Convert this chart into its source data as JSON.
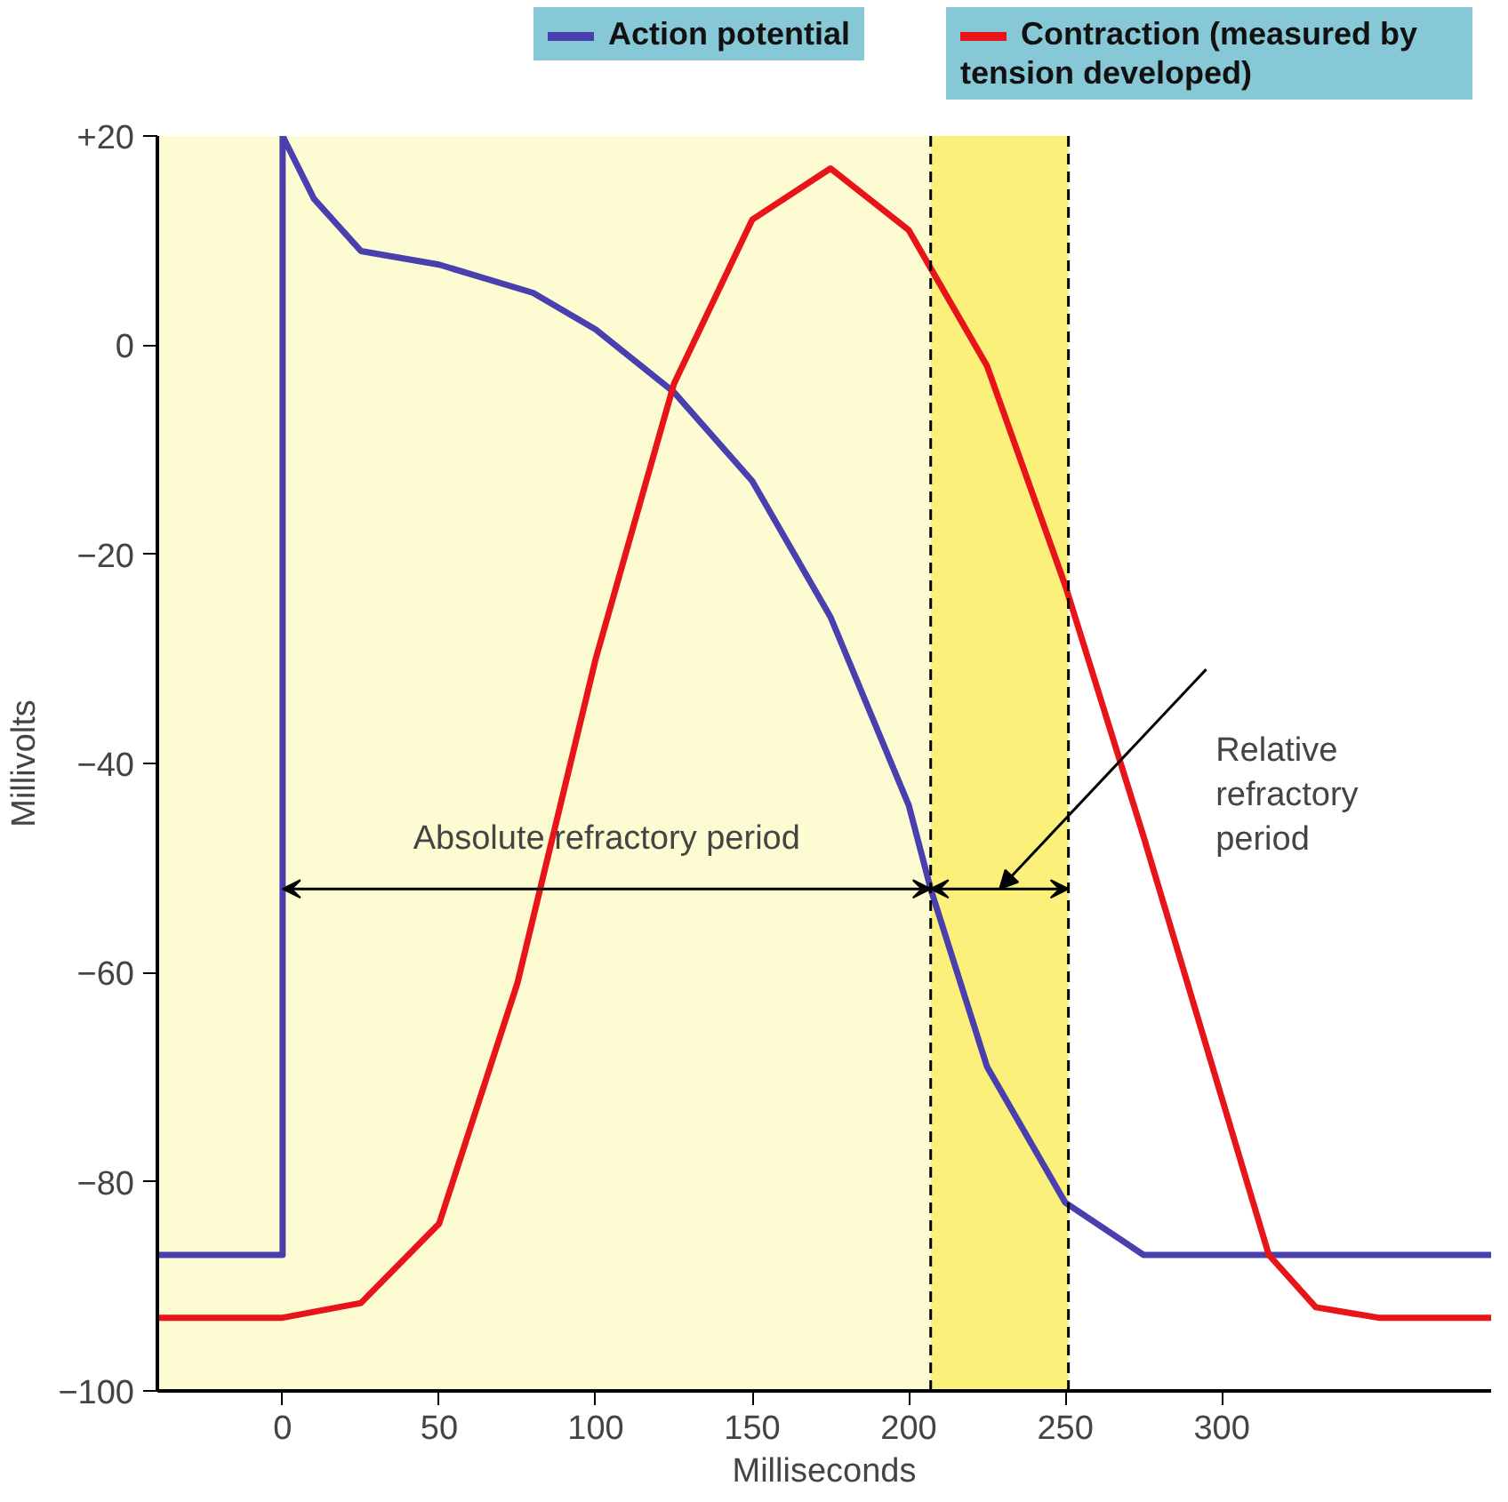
{
  "chart_data": {
    "type": "line",
    "xlabel": "Milliseconds",
    "ylabel": "Millivolts",
    "xlim": [
      -40,
      386
    ],
    "ylim": [
      -100,
      20
    ],
    "xticks": [
      0,
      50,
      100,
      150,
      200,
      250,
      300
    ],
    "yticks": [
      {
        "value": 20,
        "label": "+20"
      },
      0,
      {
        "value": -20,
        "label": "−20"
      },
      {
        "value": -40,
        "label": "−40"
      },
      {
        "value": -60,
        "label": "−60"
      },
      {
        "value": -80,
        "label": "−80"
      },
      {
        "value": -100,
        "label": "−100"
      }
    ],
    "series": [
      {
        "name": "Action potential",
        "color": "#4a3fae",
        "x": [
          -40,
          0,
          0,
          10,
          25,
          50,
          80,
          100,
          125,
          150,
          175,
          200,
          207,
          225,
          250,
          275,
          386
        ],
        "values": [
          -87,
          -87,
          20,
          14,
          9,
          7.7,
          5,
          1.5,
          -4.5,
          -13,
          -26,
          -44,
          -52,
          -69,
          -82,
          -87,
          -87
        ]
      },
      {
        "name": "Contraction (measured by tension developed)",
        "color": "#e8141a",
        "x": [
          -40,
          0,
          25,
          50,
          75,
          100,
          125,
          150,
          175,
          200,
          225,
          250,
          275,
          300,
          315,
          330,
          350,
          386
        ],
        "values": [
          -93,
          -93,
          -91.6,
          -84,
          -61,
          -30,
          -3.7,
          12,
          16.9,
          11,
          -2,
          -23,
          -47,
          -72,
          -87,
          -92,
          -93,
          -93
        ]
      }
    ],
    "bands": [
      {
        "axis": "x",
        "from": -40,
        "to": 207,
        "color": "#fdfbd2"
      },
      {
        "axis": "x",
        "from": 207,
        "to": 251,
        "color": "#fbf07a"
      }
    ],
    "ref_lines": [
      {
        "axis": "x",
        "value": 207,
        "line_style": "dashed",
        "color": "#000000"
      },
      {
        "axis": "x",
        "value": 251,
        "line_style": "dashed",
        "color": "#000000"
      }
    ],
    "annotations": [
      "Absolute refractory period",
      "Relative refractory period"
    ],
    "grid": false,
    "legend": "top"
  }
}
